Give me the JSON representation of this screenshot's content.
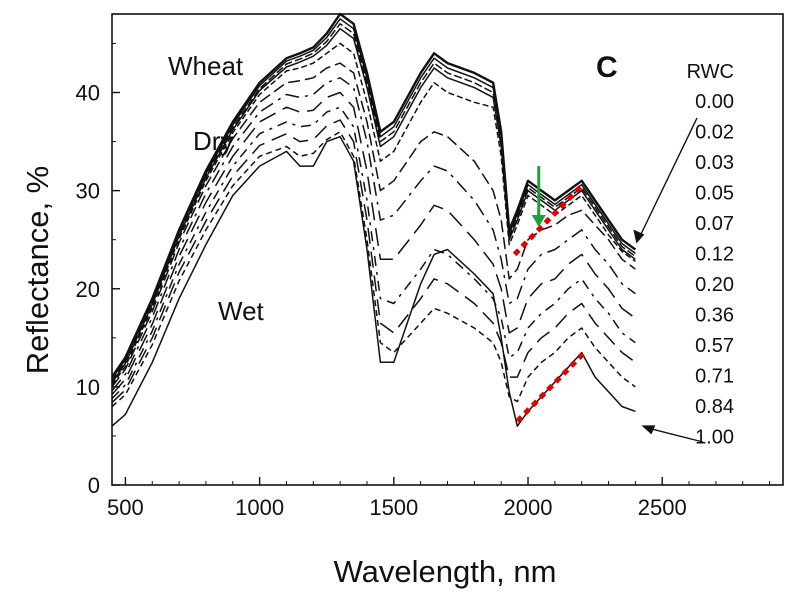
{
  "chart_data": {
    "type": "line",
    "title": "",
    "panel_label": "C",
    "xlabel": "Wavelength, nm",
    "ylabel": "Reflectance, %",
    "xlim": [
      450,
      2950
    ],
    "ylim": [
      0,
      48
    ],
    "xticks": [
      500,
      1000,
      1500,
      2000,
      2500
    ],
    "yticks": [
      0,
      10,
      20,
      30,
      40
    ],
    "grid": false,
    "annotations": {
      "crop": "Wheat",
      "dry": "Dry",
      "wet": "Wet"
    },
    "legend_title": "RWC",
    "legend_placement": "right",
    "legend_values": [
      "0.00",
      "0.02",
      "0.03",
      "0.05",
      "0.07",
      "0.12",
      "0.20",
      "0.36",
      "0.57",
      "0.71",
      "0.84",
      "1.00"
    ],
    "x": [
      450,
      500,
      600,
      700,
      800,
      900,
      1000,
      1100,
      1150,
      1200,
      1250,
      1300,
      1350,
      1400,
      1450,
      1500,
      1600,
      1650,
      1700,
      1800,
      1870,
      1900,
      1930,
      1960,
      2000,
      2050,
      2100,
      2150,
      2200,
      2250,
      2300,
      2350,
      2400
    ],
    "series": [
      {
        "name": "0.00",
        "values": [
          11,
          13,
          19,
          26,
          32,
          37,
          41,
          43.5,
          44,
          44.6,
          46,
          48,
          47,
          42,
          36,
          37,
          42,
          44,
          43,
          42,
          41,
          36,
          26,
          28,
          31,
          30,
          29,
          30,
          31,
          29,
          27,
          25,
          24
        ]
      },
      {
        "name": "0.02",
        "values": [
          10.8,
          12.8,
          18.8,
          25.8,
          31.7,
          36.7,
          40.7,
          43.2,
          43.7,
          44.3,
          45.6,
          47.5,
          46.5,
          41.5,
          35.5,
          36.5,
          41.5,
          43.5,
          42.5,
          41.5,
          40.5,
          35.5,
          25.6,
          27.6,
          30.6,
          29.6,
          28.6,
          29.6,
          30.6,
          28.6,
          26.6,
          24.6,
          23.6
        ]
      },
      {
        "name": "0.03",
        "values": [
          10.6,
          12.6,
          18.6,
          25.6,
          31.5,
          36.4,
          40.4,
          42.9,
          43.4,
          44,
          45.2,
          47,
          46,
          41,
          35,
          36,
          41,
          43,
          42,
          41,
          40,
          35,
          25.3,
          27.3,
          30.3,
          29.3,
          28.3,
          29.3,
          30.3,
          28.3,
          26.3,
          24.3,
          23.3
        ]
      },
      {
        "name": "0.05",
        "values": [
          10.4,
          12.4,
          18.4,
          25.4,
          31.3,
          36.2,
          40.2,
          42.6,
          43.1,
          43.7,
          44.8,
          46.5,
          45.5,
          40.5,
          34.5,
          35.5,
          40.5,
          42.5,
          41.5,
          40.5,
          39.5,
          34.5,
          25,
          27,
          30,
          29,
          28,
          29,
          30,
          28,
          26,
          24,
          23
        ]
      },
      {
        "name": "0.07",
        "values": [
          10.2,
          12.1,
          18.1,
          25.1,
          31,
          35.9,
          39.8,
          42.2,
          42.5,
          43,
          44,
          45,
          44,
          39,
          33,
          34,
          39,
          41,
          40,
          39,
          38.5,
          33.5,
          24.5,
          26.5,
          29.5,
          28.5,
          27.5,
          28.5,
          29.5,
          27.5,
          25.5,
          23.8,
          22.8
        ]
      },
      {
        "name": "0.12",
        "values": [
          10,
          11.8,
          17.7,
          24.7,
          30.5,
          35.3,
          39,
          41,
          41.2,
          41.5,
          42.5,
          43,
          42,
          37,
          30,
          31,
          35,
          36,
          35.5,
          33,
          30,
          27,
          21,
          22,
          25,
          26,
          26.5,
          27.5,
          28,
          26.5,
          25,
          23,
          22
        ]
      },
      {
        "name": "0.20",
        "values": [
          9.6,
          11.3,
          17.1,
          24,
          29.7,
          34.5,
          38,
          39.8,
          39.5,
          39.8,
          41,
          41.5,
          40.5,
          35,
          27,
          27.5,
          31,
          32.5,
          32,
          29,
          26,
          23,
          18.5,
          19,
          22,
          23.5,
          24,
          25,
          26,
          24,
          22.5,
          20.5,
          19.5
        ]
      },
      {
        "name": "0.36",
        "values": [
          9.2,
          10.8,
          16.4,
          23.3,
          28.8,
          33.5,
          37,
          38.5,
          38,
          38.2,
          39.5,
          40,
          38.5,
          32,
          23,
          23,
          26.5,
          28.5,
          28,
          25,
          22.5,
          20,
          15.5,
          16,
          19,
          20.5,
          21,
          22.5,
          23.5,
          21.5,
          20,
          18,
          17
        ]
      },
      {
        "name": "0.57",
        "values": [
          8.8,
          10.2,
          15.7,
          22.5,
          27.8,
          32.5,
          35.8,
          37,
          36.5,
          36.7,
          38,
          38.5,
          36.5,
          29,
          19,
          18.5,
          22,
          24,
          23.5,
          21,
          19,
          17,
          13,
          13.5,
          16,
          17.5,
          18.5,
          20,
          21,
          19,
          17.5,
          15.5,
          14.5
        ]
      },
      {
        "name": "0.71",
        "values": [
          8.4,
          9.7,
          15,
          21.7,
          26.9,
          31.5,
          34.6,
          35.8,
          35,
          35.2,
          36.6,
          37.2,
          35,
          27,
          16.5,
          15.5,
          19,
          21,
          20.5,
          18.5,
          16.5,
          14.5,
          11,
          11,
          13.5,
          15,
          16,
          17.5,
          18.5,
          16.5,
          15,
          13.5,
          12.5
        ]
      },
      {
        "name": "0.84",
        "values": [
          8,
          9.2,
          14.3,
          20.8,
          26,
          30.5,
          33.5,
          34.5,
          33.5,
          33.8,
          35.2,
          36,
          33.5,
          25,
          14.5,
          13.5,
          16.5,
          18,
          17.5,
          16,
          14.5,
          12.5,
          9,
          8.5,
          11,
          12.5,
          13.5,
          15,
          16,
          14,
          12.5,
          11,
          10
        ]
      },
      {
        "name": "1.00",
        "values": [
          6,
          7.2,
          12.5,
          19,
          24.5,
          29.5,
          32.5,
          34,
          32.5,
          32.5,
          35,
          35.5,
          33,
          24,
          12.5,
          12.5,
          20.5,
          23.5,
          24,
          21.5,
          19.5,
          15,
          9.5,
          6,
          7.5,
          9,
          10.5,
          12,
          13.5,
          11,
          9.5,
          8,
          7.5
        ]
      }
    ],
    "highlights": {
      "dry_slope": {
        "x": [
          1950,
          2200
        ],
        "y": [
          23.5,
          30.5
        ],
        "color": "#e00000"
      },
      "wet_slope": {
        "x": [
          1960,
          2210
        ],
        "y": [
          6.5,
          13.5
        ],
        "color": "#e00000"
      },
      "depth_arrow": {
        "x": 2040,
        "y": [
          32.5,
          26.5
        ],
        "color": "#1e9e3c"
      }
    }
  }
}
